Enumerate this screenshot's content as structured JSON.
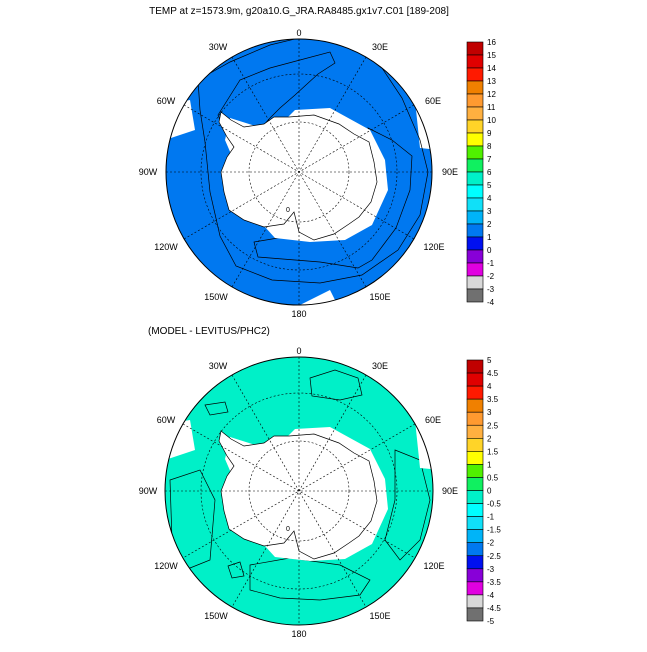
{
  "top_panel": {
    "title": "TEMP at z=1573.9m, g20a10.G_JRA.RA8485.gx1v7.C01 [189-208]",
    "longitude_labels": [
      "0",
      "30E",
      "60E",
      "90E",
      "120E",
      "150E",
      "180",
      "150W",
      "120W",
      "90W",
      "60W",
      "30W"
    ],
    "contour_label": "0",
    "colorbar": {
      "labels": [
        "16",
        "15",
        "14",
        "13",
        "12",
        "11",
        "10",
        "9",
        "8",
        "7",
        "6",
        "5",
        "4",
        "3",
        "2",
        "1",
        "0",
        "-1",
        "-2",
        "-3",
        "-4"
      ],
      "colors": [
        "#c00000",
        "#e00000",
        "#ff1a00",
        "#f08000",
        "#ff9a30",
        "#ffb040",
        "#ffd428",
        "#ffff00",
        "#50f000",
        "#10f060",
        "#00f0c8",
        "#00ffff",
        "#10e0f8",
        "#00b4f8",
        "#0078f0",
        "#0010f0",
        "#8800d8",
        "#e000e0",
        "#d8d8d8",
        "#707070"
      ]
    }
  },
  "bottom_panel": {
    "title": "(MODEL - LEVITUS/PHC2)",
    "longitude_labels": [
      "0",
      "30E",
      "60E",
      "90E",
      "120E",
      "150E",
      "180",
      "150W",
      "120W",
      "90W",
      "60W",
      "30W"
    ],
    "contour_label": "0",
    "colorbar": {
      "labels": [
        "5",
        "4.5",
        "4",
        "3.5",
        "3",
        "2.5",
        "2",
        "1.5",
        "1",
        "0.5",
        "0",
        "-0.5",
        "-1",
        "-1.5",
        "-2",
        "-2.5",
        "-3",
        "-3.5",
        "-4",
        "-4.5",
        "-5"
      ],
      "colors": [
        "#c00000",
        "#e00000",
        "#ff1a00",
        "#f08000",
        "#ff9a30",
        "#ffb040",
        "#ffd428",
        "#ffff00",
        "#50f000",
        "#10f060",
        "#00f0c8",
        "#00ffff",
        "#10e0f8",
        "#00b4f8",
        "#0078f0",
        "#0010f0",
        "#8800d8",
        "#e000e0",
        "#d8d8d8",
        "#707070"
      ]
    }
  }
}
